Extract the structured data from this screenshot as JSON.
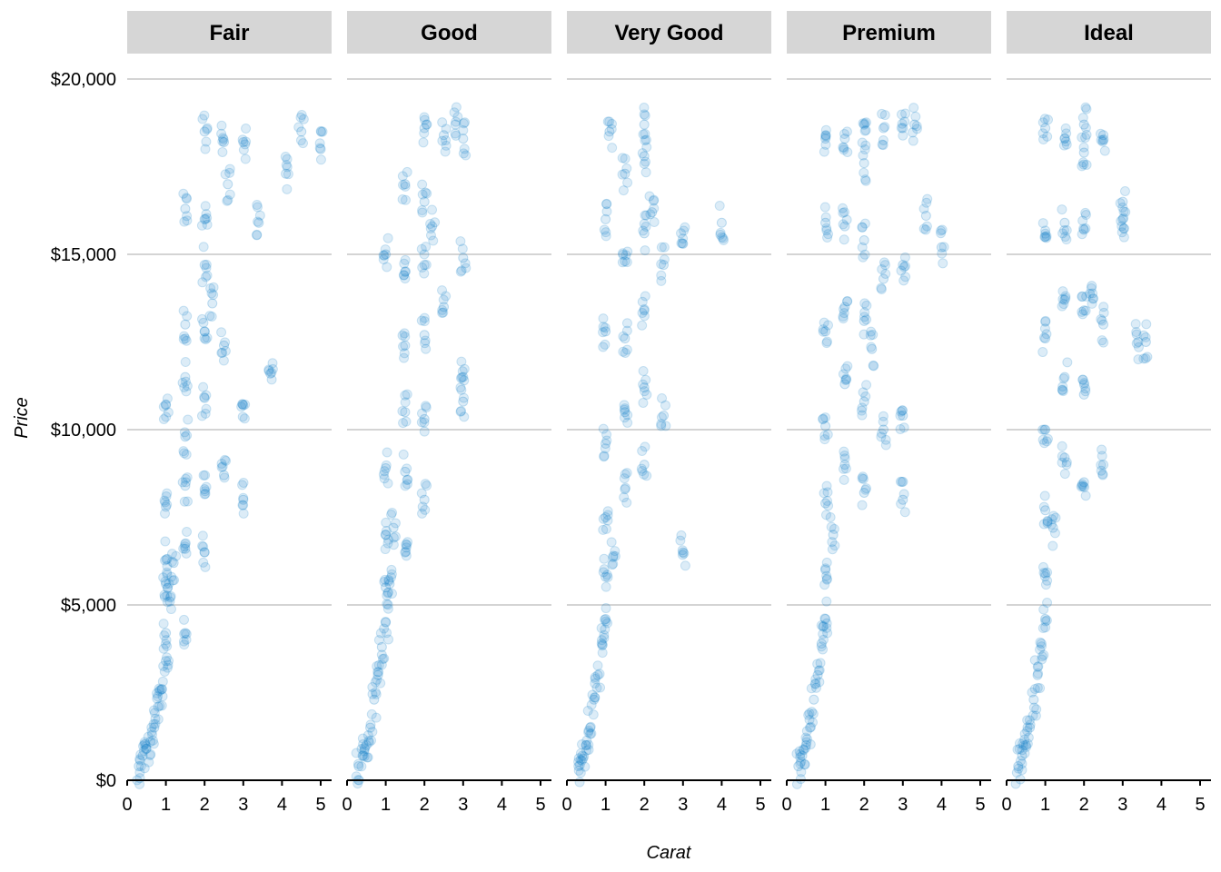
{
  "chart_data": {
    "type": "scatter",
    "facet_by": "cut",
    "xlabel": "Carat",
    "ylabel": "Price",
    "xlim": [
      0,
      5.2
    ],
    "ylim": [
      0,
      20000
    ],
    "x_ticks": [
      "0",
      "1",
      "2",
      "3",
      "4",
      "5"
    ],
    "y_ticks": [
      "$0",
      "$5,000",
      "$10,000",
      "$15,000",
      "$20,000"
    ],
    "y_tick_values": [
      0,
      5000,
      10000,
      15000,
      20000
    ],
    "grid": "horizontal",
    "point_color": "#1380C8",
    "point_opacity": 0.15,
    "panels": [
      {
        "name": "Fair",
        "points": [
          [
            0.3,
            400
          ],
          [
            0.4,
            700
          ],
          [
            0.5,
            900
          ],
          [
            0.6,
            1100
          ],
          [
            0.7,
            1500
          ],
          [
            0.8,
            2100
          ],
          [
            0.9,
            2600
          ],
          [
            1.0,
            3400
          ],
          [
            1.0,
            4200
          ],
          [
            1.0,
            5600
          ],
          [
            1.01,
            6300
          ],
          [
            1.0,
            7800
          ],
          [
            1.0,
            10700
          ],
          [
            1.1,
            5100
          ],
          [
            1.2,
            6200
          ],
          [
            1.5,
            4200
          ],
          [
            1.5,
            6600
          ],
          [
            1.5,
            8400
          ],
          [
            1.5,
            9800
          ],
          [
            1.5,
            11500
          ],
          [
            1.5,
            13000
          ],
          [
            1.5,
            16300
          ],
          [
            2.0,
            6500
          ],
          [
            2.0,
            8300
          ],
          [
            2.0,
            10900
          ],
          [
            2.0,
            12800
          ],
          [
            2.0,
            14700
          ],
          [
            2.0,
            16000
          ],
          [
            2.0,
            18500
          ],
          [
            2.2,
            13600
          ],
          [
            2.5,
            8700
          ],
          [
            2.5,
            12400
          ],
          [
            2.5,
            18200
          ],
          [
            2.6,
            17000
          ],
          [
            3.0,
            8000
          ],
          [
            3.0,
            10700
          ],
          [
            3.0,
            18200
          ],
          [
            3.4,
            15900
          ],
          [
            3.7,
            11600
          ],
          [
            4.1,
            17300
          ],
          [
            4.5,
            18500
          ],
          [
            5.0,
            18000
          ]
        ]
      },
      {
        "name": "Good",
        "points": [
          [
            0.3,
            400
          ],
          [
            0.4,
            700
          ],
          [
            0.5,
            1000
          ],
          [
            0.6,
            1500
          ],
          [
            0.7,
            2300
          ],
          [
            0.8,
            3000
          ],
          [
            0.9,
            3800
          ],
          [
            1.0,
            4500
          ],
          [
            1.0,
            5500
          ],
          [
            1.0,
            7000
          ],
          [
            1.0,
            8900
          ],
          [
            1.0,
            15000
          ],
          [
            1.1,
            5600
          ],
          [
            1.2,
            7200
          ],
          [
            1.5,
            6500
          ],
          [
            1.5,
            8800
          ],
          [
            1.5,
            10500
          ],
          [
            1.5,
            12400
          ],
          [
            1.5,
            14500
          ],
          [
            1.5,
            17000
          ],
          [
            2.0,
            8000
          ],
          [
            2.0,
            10300
          ],
          [
            2.0,
            12700
          ],
          [
            2.0,
            14700
          ],
          [
            2.0,
            16500
          ],
          [
            2.0,
            18600
          ],
          [
            2.2,
            15800
          ],
          [
            2.5,
            13500
          ],
          [
            2.5,
            18400
          ],
          [
            2.8,
            18700
          ],
          [
            3.0,
            10800
          ],
          [
            3.0,
            11500
          ],
          [
            3.0,
            14900
          ],
          [
            3.0,
            18300
          ]
        ]
      },
      {
        "name": "Very Good",
        "points": [
          [
            0.3,
            400
          ],
          [
            0.4,
            700
          ],
          [
            0.5,
            1000
          ],
          [
            0.6,
            1500
          ],
          [
            0.7,
            2300
          ],
          [
            0.8,
            3000
          ],
          [
            0.9,
            3900
          ],
          [
            1.0,
            4600
          ],
          [
            1.0,
            5800
          ],
          [
            1.0,
            7500
          ],
          [
            1.0,
            9600
          ],
          [
            1.0,
            12800
          ],
          [
            1.0,
            16000
          ],
          [
            1.1,
            18500
          ],
          [
            1.2,
            6400
          ],
          [
            1.5,
            8300
          ],
          [
            1.5,
            10500
          ],
          [
            1.5,
            12600
          ],
          [
            1.5,
            14800
          ],
          [
            1.5,
            17300
          ],
          [
            2.0,
            9000
          ],
          [
            2.0,
            11200
          ],
          [
            2.0,
            13400
          ],
          [
            2.0,
            15600
          ],
          [
            2.0,
            17800
          ],
          [
            2.0,
            18700
          ],
          [
            2.2,
            16200
          ],
          [
            2.5,
            10400
          ],
          [
            2.5,
            14700
          ],
          [
            3.0,
            6500
          ],
          [
            3.0,
            15300
          ],
          [
            4.0,
            15900
          ]
        ]
      },
      {
        "name": "Premium",
        "points": [
          [
            0.3,
            400
          ],
          [
            0.4,
            700
          ],
          [
            0.5,
            1000
          ],
          [
            0.6,
            1500
          ],
          [
            0.7,
            2300
          ],
          [
            0.8,
            3000
          ],
          [
            0.9,
            3900
          ],
          [
            1.0,
            4600
          ],
          [
            1.0,
            6000
          ],
          [
            1.0,
            7900
          ],
          [
            1.0,
            10100
          ],
          [
            1.0,
            12800
          ],
          [
            1.0,
            15900
          ],
          [
            1.0,
            18300
          ],
          [
            1.2,
            7000
          ],
          [
            1.5,
            9000
          ],
          [
            1.5,
            11300
          ],
          [
            1.5,
            13500
          ],
          [
            1.5,
            15800
          ],
          [
            1.5,
            18300
          ],
          [
            2.0,
            8200
          ],
          [
            2.0,
            10800
          ],
          [
            2.0,
            13100
          ],
          [
            2.0,
            15400
          ],
          [
            2.0,
            17600
          ],
          [
            2.0,
            18700
          ],
          [
            2.2,
            12300
          ],
          [
            2.5,
            10000
          ],
          [
            2.5,
            14300
          ],
          [
            2.5,
            18600
          ],
          [
            3.0,
            8000
          ],
          [
            3.0,
            10400
          ],
          [
            3.0,
            14700
          ],
          [
            3.0,
            18600
          ],
          [
            3.3,
            18700
          ],
          [
            3.6,
            16100
          ],
          [
            4.0,
            15200
          ]
        ]
      },
      {
        "name": "Ideal",
        "points": [
          [
            0.3,
            400
          ],
          [
            0.4,
            700
          ],
          [
            0.5,
            1000
          ],
          [
            0.6,
            1500
          ],
          [
            0.7,
            2300
          ],
          [
            0.8,
            3000
          ],
          [
            0.9,
            3900
          ],
          [
            1.0,
            4600
          ],
          [
            1.0,
            5900
          ],
          [
            1.0,
            7700
          ],
          [
            1.0,
            10000
          ],
          [
            1.0,
            12600
          ],
          [
            1.0,
            15500
          ],
          [
            1.0,
            18600
          ],
          [
            1.2,
            7200
          ],
          [
            1.5,
            9200
          ],
          [
            1.5,
            11500
          ],
          [
            1.5,
            13700
          ],
          [
            1.5,
            15900
          ],
          [
            1.5,
            18300
          ],
          [
            2.0,
            8500
          ],
          [
            2.0,
            11000
          ],
          [
            2.0,
            13400
          ],
          [
            2.0,
            15700
          ],
          [
            2.0,
            17900
          ],
          [
            2.0,
            18700
          ],
          [
            2.2,
            14100
          ],
          [
            2.5,
            9000
          ],
          [
            2.5,
            13000
          ],
          [
            2.5,
            18400
          ],
          [
            3.0,
            16000
          ],
          [
            3.0,
            16500
          ],
          [
            3.4,
            12500
          ],
          [
            3.6,
            12500
          ]
        ]
      }
    ]
  }
}
